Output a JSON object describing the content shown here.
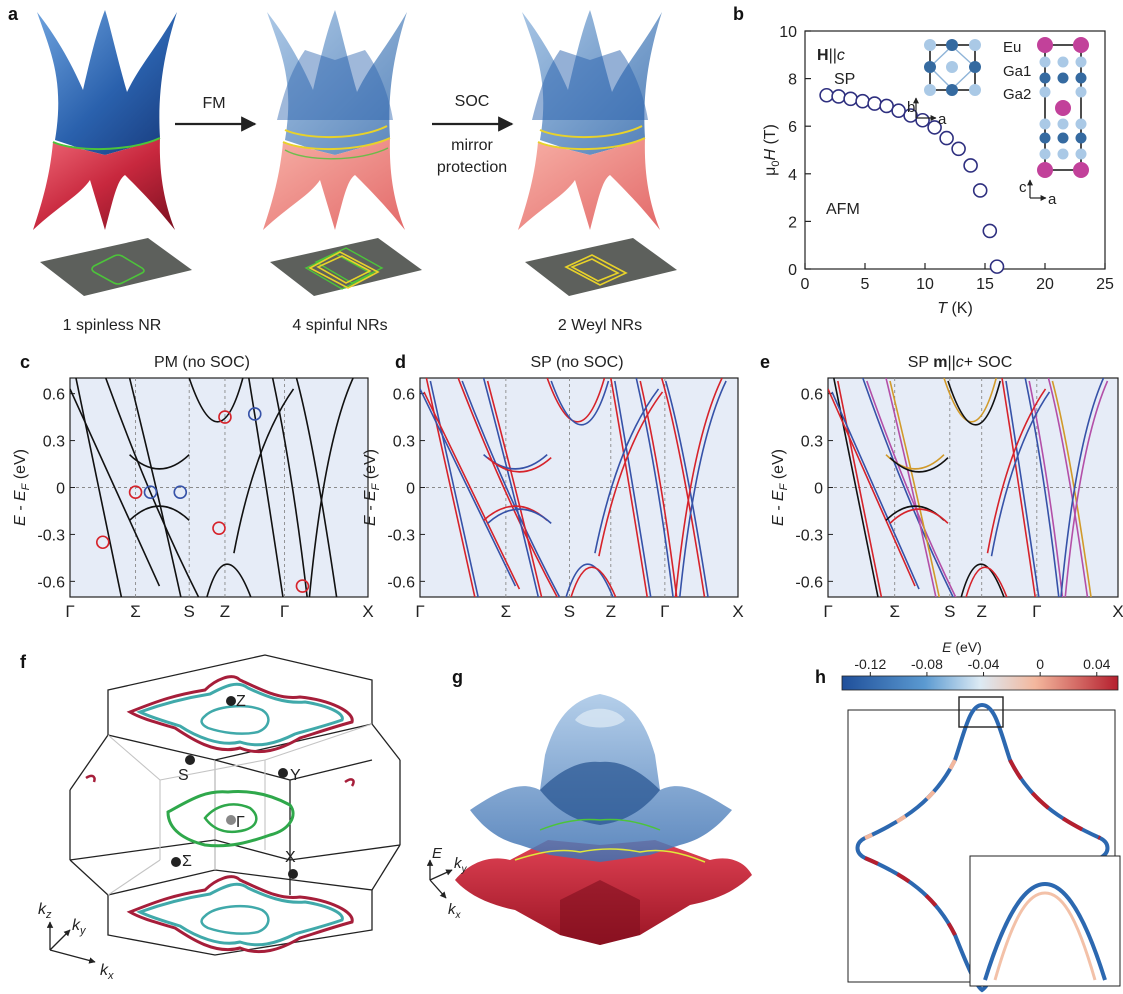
{
  "panels": {
    "a": "a",
    "b": "b",
    "c": "c",
    "d": "d",
    "e": "e",
    "f": "f",
    "g": "g",
    "h": "h"
  },
  "panel_a": {
    "arrow1": "FM",
    "arrow2_line1": "SOC",
    "arrow2_line2": "mirror",
    "arrow2_line3": "protection",
    "cap1": "1 spinless NR",
    "cap2": "4 spinful NRs",
    "cap3": "2 Weyl NRs",
    "colors": {
      "upper": "#2f6db5",
      "lower": "#c8283e",
      "ring_green": "#4cc43a",
      "ring_yellow": "#e8d22a"
    }
  },
  "panel_b": {
    "field_bold": "H",
    "field_rest": "||",
    "field_c": "c",
    "sp": "SP",
    "afm": "AFM",
    "ylabel_mu": "μ",
    "ylabel_sub": "0",
    "ylabel_h": "H",
    "ylabel_unit": " (T)",
    "xlabel_t": "T",
    "xlabel_unit": " (K)",
    "legend": [
      {
        "name": "Eu",
        "color": "#c2419a"
      },
      {
        "name": "Ga1",
        "color": "#356aa0"
      },
      {
        "name": "Ga2",
        "color": "#8fb4d8"
      }
    ],
    "axes_small": {
      "b": "b",
      "a": "a",
      "c": "c",
      "a2": "a"
    }
  },
  "panel_c": {
    "title": "PM (no SOC)"
  },
  "panel_d": {
    "title": "SP (no SOC)"
  },
  "panel_e": {
    "title_pre": "SP ",
    "title_m": "m",
    "title_post": "||",
    "title_c": "c",
    "title_end": "+ SOC"
  },
  "band_axes": {
    "ylabel_e": "E",
    "ylabel_mid": " - E",
    "ylabel_sub": "F",
    "ylabel_unit": " (eV)",
    "kpoints": [
      "Γ",
      "Σ",
      "S",
      "Z",
      "Γ",
      "X"
    ]
  },
  "panel_f": {
    "points": {
      "Z": "Z",
      "S": "S",
      "Y": "Y",
      "Gamma": "Γ",
      "Sigma": "Σ",
      "X": "X"
    },
    "axes": {
      "kz": "k",
      "kz_sub": "z",
      "ky": "k",
      "ky_sub": "y",
      "kx": "k",
      "kx_sub": "x"
    }
  },
  "panel_g": {
    "e": "E",
    "ky": "k",
    "ky_sub": "y",
    "kx": "k",
    "kx_sub": "x"
  },
  "panel_h": {
    "cb_label": "E",
    "cb_unit": " (eV)",
    "cb_ticks": [
      "-0.12",
      "-0.08",
      "-0.04",
      "0",
      "0.04"
    ]
  },
  "chart_data": [
    {
      "type": "scatter",
      "xlabel": "T (K)",
      "ylabel": "μ0H (T)",
      "xlim": [
        0,
        25
      ],
      "ylim": [
        0,
        10
      ],
      "xticks": [
        0,
        5,
        10,
        15,
        20,
        25
      ],
      "yticks": [
        0,
        2,
        4,
        6,
        8,
        10
      ],
      "grid": false,
      "series": [
        {
          "x": [
            1.8,
            2.8,
            3.8,
            4.8,
            5.8,
            6.8,
            7.8,
            8.8,
            9.8,
            10.8,
            11.8,
            12.8,
            13.8,
            14.6,
            15.4,
            16.0
          ],
          "y": [
            7.3,
            7.25,
            7.15,
            7.05,
            6.95,
            6.85,
            6.65,
            6.45,
            6.25,
            5.95,
            5.5,
            5.05,
            4.35,
            3.3,
            1.6,
            0.1
          ]
        }
      ]
    },
    {
      "type": "line",
      "title": "PM (no SOC)",
      "ylabel": "E - EF (eV)",
      "ylim": [
        -0.7,
        0.7
      ],
      "yticks": [
        -0.6,
        -0.3,
        0,
        0.3,
        0.6
      ],
      "categories": [
        "Γ",
        "Σ",
        "S",
        "Z",
        "Γ",
        "X"
      ],
      "grid": false
    },
    {
      "type": "line",
      "title": "SP (no SOC)",
      "ylabel": "E - EF (eV)",
      "ylim": [
        -0.7,
        0.7
      ],
      "yticks": [
        -0.6,
        -0.3,
        0,
        0.3,
        0.6
      ],
      "categories": [
        "Γ",
        "Σ",
        "S",
        "Z",
        "Γ",
        "X"
      ],
      "grid": false
    },
    {
      "type": "line",
      "title": "SP m||c+ SOC",
      "ylabel": "E - EF (eV)",
      "ylim": [
        -0.7,
        0.7
      ],
      "yticks": [
        -0.6,
        -0.3,
        0,
        0.3,
        0.6
      ],
      "categories": [
        "Γ",
        "Σ",
        "S",
        "Z",
        "Γ",
        "X"
      ],
      "grid": false
    },
    {
      "type": "heatmap",
      "xlabel": "E (eV)",
      "ticks": [
        -0.12,
        -0.08,
        -0.04,
        0,
        0.04
      ],
      "colorscale": [
        "#1f4f9a",
        "#5b9ad1",
        "#dceaf4",
        "#f3b79d",
        "#b51f2e"
      ]
    }
  ]
}
